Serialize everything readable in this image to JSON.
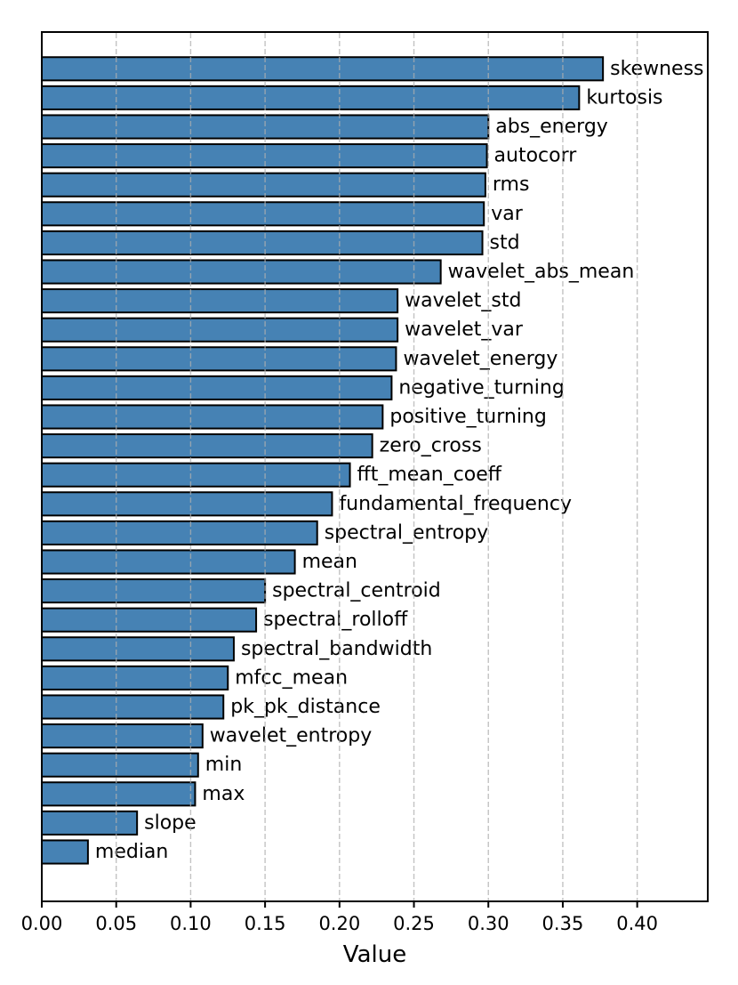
{
  "figure": {
    "background": "#ffffff"
  },
  "chart_data": {
    "type": "bar",
    "orientation": "horizontal",
    "title": "",
    "xlabel": "Value",
    "ylabel": "",
    "categories": [
      "skewness",
      "kurtosis",
      "abs_energy",
      "autocorr",
      "rms",
      "var",
      "std",
      "wavelet_abs_mean",
      "wavelet_std",
      "wavelet_var",
      "wavelet_energy",
      "negative_turning",
      "positive_turning",
      "zero_cross",
      "fft_mean_coeff",
      "fundamental_frequency",
      "spectral_entropy",
      "mean",
      "spectral_centroid",
      "spectral_rolloff",
      "spectral_bandwidth",
      "mfcc_mean",
      "pk_pk_distance",
      "wavelet_entropy",
      "min",
      "max",
      "slope",
      "median"
    ],
    "values": [
      0.377,
      0.361,
      0.3,
      0.299,
      0.298,
      0.297,
      0.296,
      0.268,
      0.239,
      0.239,
      0.238,
      0.235,
      0.229,
      0.222,
      0.207,
      0.195,
      0.185,
      0.17,
      0.15,
      0.144,
      0.129,
      0.125,
      0.122,
      0.108,
      0.105,
      0.103,
      0.064,
      0.031
    ],
    "xlim": [
      0,
      0.4474
    ],
    "xticks": [
      0.0,
      0.05,
      0.1,
      0.15,
      0.2,
      0.25,
      0.3,
      0.35,
      0.4
    ],
    "xtick_labels": [
      "0.00",
      "0.05",
      "0.10",
      "0.15",
      "0.20",
      "0.25",
      "0.30",
      "0.35",
      "0.40"
    ],
    "grid": "vertical-dashed-over-bars",
    "legend": "none",
    "bar_color": "#4682b4",
    "bar_edge_color": "#000000",
    "grid_color": "#afafaf",
    "spine_color": "#000000"
  }
}
